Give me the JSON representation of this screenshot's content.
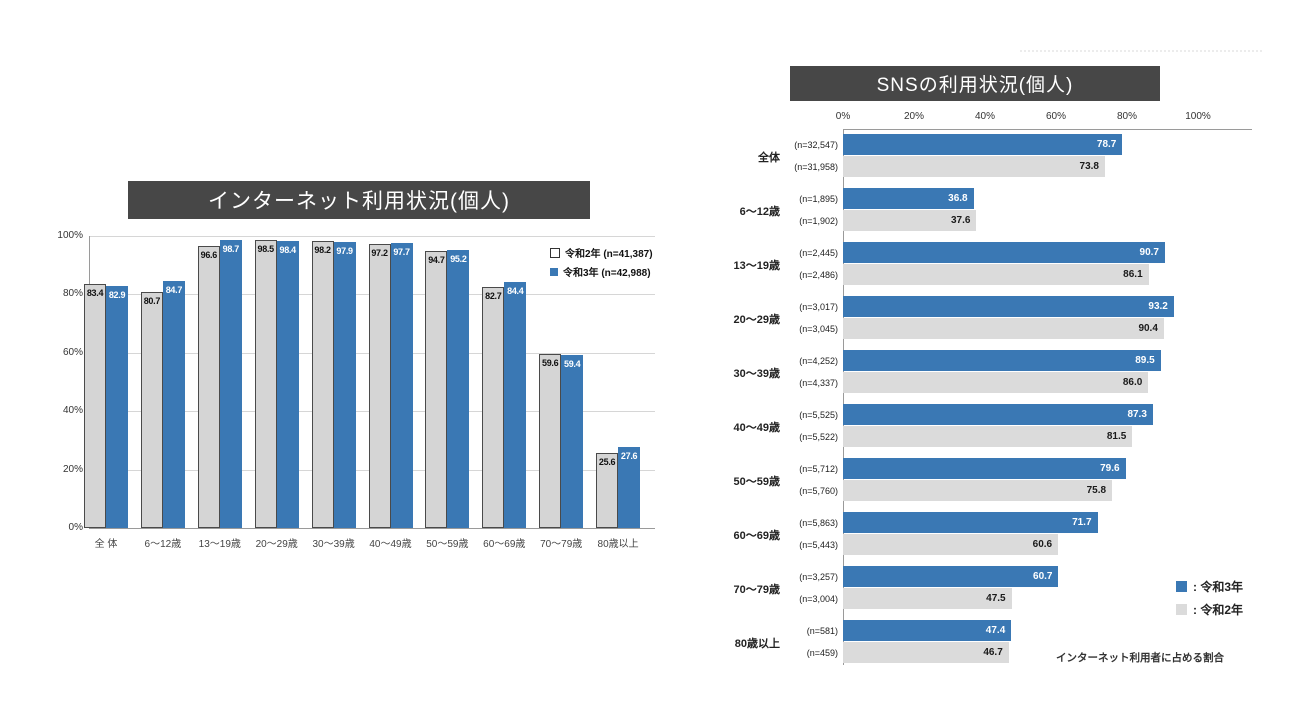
{
  "colors": {
    "bar_blue": "#3a78b4",
    "bar_gray_bordered": "#d5d5d5",
    "bar_gray_plain": "#dbdbdb",
    "title_bg": "#474747",
    "title_text": "#ffffff"
  },
  "chart_data": [
    {
      "type": "bar",
      "orientation": "vertical",
      "title": "インターネット利用状況(個人)",
      "categories": [
        "全 体",
        "6〜12歳",
        "13〜19歳",
        "20〜29歳",
        "30〜39歳",
        "40〜49歳",
        "50〜59歳",
        "60〜69歳",
        "70〜79歳",
        "80歳以上"
      ],
      "series": [
        {
          "name": "令和2年 (n=41,387)",
          "swatch": "open-square",
          "values": [
            83.4,
            80.7,
            96.6,
            98.5,
            98.2,
            97.2,
            94.7,
            82.7,
            59.6,
            25.6
          ]
        },
        {
          "name": "令和3年 (n=42,988)",
          "swatch": "blue-square",
          "values": [
            82.9,
            84.7,
            98.7,
            98.4,
            97.9,
            97.7,
            95.2,
            84.4,
            59.4,
            27.6
          ]
        }
      ],
      "ylim": [
        0,
        100
      ],
      "yticks": [
        "100%",
        "80%",
        "60%",
        "40%",
        "20%",
        "0%"
      ],
      "grid": true,
      "legend_position": "top-right"
    },
    {
      "type": "bar",
      "orientation": "horizontal",
      "title": "SNSの利用状況(個人)",
      "xlim": [
        0,
        100
      ],
      "xticks": [
        "0%",
        "20%",
        "40%",
        "60%",
        "80%",
        "100%"
      ],
      "groups": [
        {
          "label": "全体",
          "r3_n": "(n=32,547)",
          "r3": 78.7,
          "r2_n": "(n=31,958)",
          "r2": 73.8
        },
        {
          "label": "6〜12歳",
          "r3_n": "(n=1,895)",
          "r3": 36.8,
          "r2_n": "(n=1,902)",
          "r2": 37.6
        },
        {
          "label": "13〜19歳",
          "r3_n": "(n=2,445)",
          "r3": 90.7,
          "r2_n": "(n=2,486)",
          "r2": 86.1
        },
        {
          "label": "20〜29歳",
          "r3_n": "(n=3,017)",
          "r3": 93.2,
          "r2_n": "(n=3,045)",
          "r2": 90.4
        },
        {
          "label": "30〜39歳",
          "r3_n": "(n=4,252)",
          "r3": 89.5,
          "r2_n": "(n=4,337)",
          "r2": 86.0
        },
        {
          "label": "40〜49歳",
          "r3_n": "(n=5,525)",
          "r3": 87.3,
          "r2_n": "(n=5,522)",
          "r2": 81.5
        },
        {
          "label": "50〜59歳",
          "r3_n": "(n=5,712)",
          "r3": 79.6,
          "r2_n": "(n=5,760)",
          "r2": 75.8
        },
        {
          "label": "60〜69歳",
          "r3_n": "(n=5,863)",
          "r3": 71.7,
          "r2_n": "(n=5,443)",
          "r2": 60.6
        },
        {
          "label": "70〜79歳",
          "r3_n": "(n=3,257)",
          "r3": 60.7,
          "r2_n": "(n=3,004)",
          "r2": 47.5
        },
        {
          "label": "80歳以上",
          "r3_n": "(n=581)",
          "r3": 47.4,
          "r2_n": "(n=459)",
          "r2": 46.7
        }
      ],
      "legend": [
        {
          "swatch": "blue-square",
          "label": ": 令和3年"
        },
        {
          "swatch": "gray-square",
          "label": ": 令和2年"
        }
      ],
      "footnote": "インターネット利用者に占める割合"
    }
  ]
}
